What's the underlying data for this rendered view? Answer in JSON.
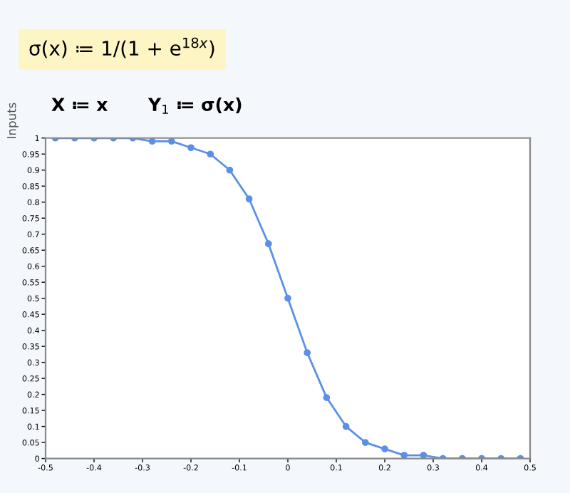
{
  "chart_data": {
    "type": "line",
    "annotations": [
      "σ(x) ≔ 1/(1 + e$^{18x}$)",
      "X ≔ x",
      "Y$_{1}$ ≔ σ(x)",
      "Inputs"
    ],
    "x": [
      -0.48,
      -0.44,
      -0.4,
      -0.36,
      -0.32,
      -0.28,
      -0.24,
      -0.2,
      -0.16,
      -0.12,
      -0.08,
      -0.04,
      0,
      0.04,
      0.08,
      0.12,
      0.16,
      0.2,
      0.24,
      0.28,
      0.32,
      0.36,
      0.4,
      0.44,
      0.48
    ],
    "series": [
      {
        "color": "#5b8fe8",
        "values": [
          1,
          1,
          1,
          1,
          1,
          0.99,
          0.99,
          0.97,
          0.95,
          0.9,
          0.81,
          0.67,
          0.5,
          0.33,
          0.19,
          0.1,
          0.05,
          0.03,
          0.01,
          0.01,
          0,
          0,
          0,
          0,
          0
        ]
      }
    ],
    "xlim": [
      -0.5,
      0.5
    ],
    "xticks": [
      -0.5,
      -0.4,
      -0.3,
      -0.2,
      -0.1,
      0,
      0.1,
      0.2,
      0.3,
      0.4,
      0.5
    ],
    "ylim": [
      0,
      1
    ],
    "yticks": [
      0,
      0.05,
      0.1,
      0.15,
      0.2,
      0.25,
      0.3,
      0.35,
      0.4,
      0.45,
      0.5,
      0.55,
      0.6,
      0.65,
      0.7,
      0.75,
      0.8,
      0.85,
      0.9,
      0.95,
      1
    ],
    "marker": "circle",
    "line_style": "solid",
    "grid": false
  }
}
